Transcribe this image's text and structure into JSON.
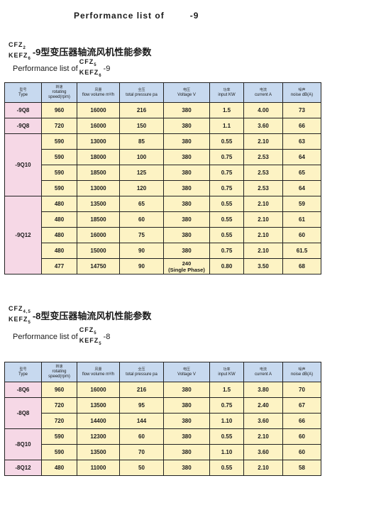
{
  "page_title": {
    "label": "Performance list of",
    "suffix": "-9"
  },
  "columns": [
    {
      "cn": "型号",
      "en": "Type"
    },
    {
      "cn": "转速",
      "en": "rotating speed(rpm)"
    },
    {
      "cn": "风量",
      "en": "flow volume m³/h"
    },
    {
      "cn": "全压",
      "en": "total pressure pa"
    },
    {
      "cn": "电压",
      "en": "Voltage V"
    },
    {
      "cn": "功率",
      "en": "input KW"
    },
    {
      "cn": "电流",
      "en": "current A"
    },
    {
      "cn": "噪声",
      "en": "noise dB(A)"
    }
  ],
  "section1": {
    "model_line1": "CFZ",
    "model_line2": "KEFZ",
    "heading_cn": "-9型变压器轴流风机性能参数",
    "sub_label": "Performance list of",
    "sub_model1": "CFZ",
    "sub_model2": "KEFZ",
    "sub_suffix": "-9",
    "rows": [
      {
        "type": "-9Q8",
        "span": 1,
        "speed": "960",
        "flow": "16000",
        "pressure": "216",
        "voltage": "380",
        "power": "1.5",
        "current": "4.00",
        "noise": "73"
      },
      {
        "type": "-9Q8",
        "span": 1,
        "speed": "720",
        "flow": "16000",
        "pressure": "150",
        "voltage": "380",
        "power": "1.1",
        "current": "3.60",
        "noise": "66"
      },
      {
        "type": "-9Q10",
        "span": 4,
        "speed": "590",
        "flow": "13000",
        "pressure": "85",
        "voltage": "380",
        "power": "0.55",
        "current": "2.10",
        "noise": "63"
      },
      {
        "speed": "590",
        "flow": "18000",
        "pressure": "100",
        "voltage": "380",
        "power": "0.75",
        "current": "2.53",
        "noise": "64"
      },
      {
        "speed": "590",
        "flow": "18500",
        "pressure": "125",
        "voltage": "380",
        "power": "0.75",
        "current": "2.53",
        "noise": "65"
      },
      {
        "speed": "590",
        "flow": "13000",
        "pressure": "120",
        "voltage": "380",
        "power": "0.75",
        "current": "2.53",
        "noise": "64"
      },
      {
        "type": "-9Q12",
        "span": 5,
        "speed": "480",
        "flow": "13500",
        "pressure": "65",
        "voltage": "380",
        "power": "0.55",
        "current": "2.10",
        "noise": "59"
      },
      {
        "speed": "480",
        "flow": "18500",
        "pressure": "60",
        "voltage": "380",
        "power": "0.55",
        "current": "2.10",
        "noise": "61"
      },
      {
        "speed": "480",
        "flow": "16000",
        "pressure": "75",
        "voltage": "380",
        "power": "0.55",
        "current": "2.10",
        "noise": "60"
      },
      {
        "speed": "480",
        "flow": "15000",
        "pressure": "90",
        "voltage": "380",
        "power": "0.75",
        "current": "2.10",
        "noise": "61.5"
      },
      {
        "speed": "477",
        "flow": "14750",
        "pressure": "90",
        "voltage": "240\n(Single Phase)",
        "power": "0.80",
        "current": "3.50",
        "noise": "68"
      }
    ]
  },
  "section2": {
    "model_line1": "CFZ",
    "model_line2": "KEFZ",
    "heading_cn": "-8型变压器轴流风机性能参数",
    "sub_label": "Performance list of",
    "sub_model1": "CFZ",
    "sub_model2": "KEFZ",
    "sub_suffix": "-8",
    "rows": [
      {
        "type": "-8Q6",
        "span": 1,
        "speed": "960",
        "flow": "16000",
        "pressure": "216",
        "voltage": "380",
        "power": "1.5",
        "current": "3.80",
        "noise": "70"
      },
      {
        "type": "-8Q8",
        "span": 2,
        "speed": "720",
        "flow": "13500",
        "pressure": "95",
        "voltage": "380",
        "power": "0.75",
        "current": "2.40",
        "noise": "67"
      },
      {
        "speed": "720",
        "flow": "14400",
        "pressure": "144",
        "voltage": "380",
        "power": "1.10",
        "current": "3.60",
        "noise": "66"
      },
      {
        "type": "-8Q10",
        "span": 2,
        "speed": "590",
        "flow": "12300",
        "pressure": "60",
        "voltage": "380",
        "power": "0.55",
        "current": "2.10",
        "noise": "60"
      },
      {
        "speed": "590",
        "flow": "13500",
        "pressure": "70",
        "voltage": "380",
        "power": "1.10",
        "current": "3.60",
        "noise": "60"
      },
      {
        "type": "-8Q12",
        "span": 1,
        "speed": "480",
        "flow": "11000",
        "pressure": "50",
        "voltage": "380",
        "power": "0.55",
        "current": "2.10",
        "noise": "58"
      }
    ]
  }
}
